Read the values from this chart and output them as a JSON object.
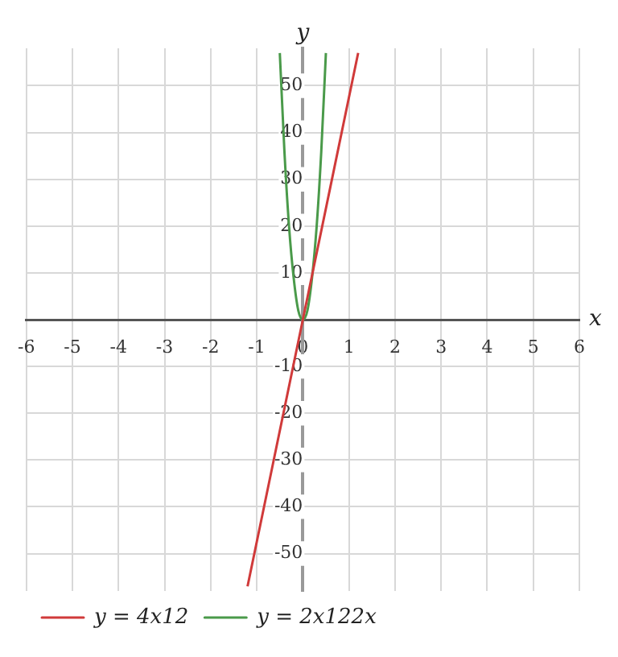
{
  "chart_data": {
    "type": "line",
    "xlabel": "x",
    "ylabel": "y",
    "xlim": [
      -6,
      6
    ],
    "xticks": [
      -6,
      -5,
      -4,
      -3,
      -2,
      -1,
      0,
      1,
      2,
      3,
      4,
      5,
      6
    ],
    "ylim": [
      -58,
      58
    ],
    "yticks": [
      -50,
      -40,
      -30,
      -20,
      -10,
      10,
      20,
      30,
      40,
      50
    ],
    "grid": true,
    "legend": "bottom left",
    "marker": "none",
    "line_style": "solid",
    "series": [
      {
        "name": "y = 4x12",
        "color": "#d03a3a",
        "x": [
          -1.2,
          0,
          1.2
        ],
        "values": [
          -57,
          0,
          57
        ]
      },
      {
        "name": "y = 2x122x",
        "color": "#4a9a4a",
        "x": [
          -0.5,
          -0.4,
          -0.3,
          -0.2,
          -0.1,
          0,
          0.1,
          0.2,
          0.3,
          0.4,
          0.5
        ],
        "values": [
          57,
          36,
          20,
          9,
          2,
          0,
          2,
          9,
          20,
          36,
          57
        ]
      }
    ]
  }
}
